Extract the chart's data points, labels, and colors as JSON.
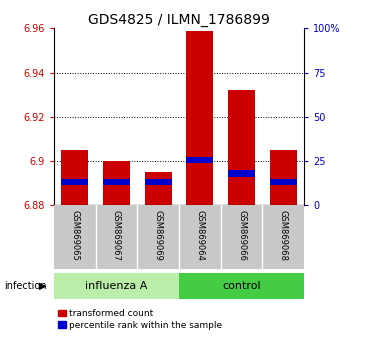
{
  "title": "GDS4825 / ILMN_1786899",
  "samples": [
    "GSM869065",
    "GSM869067",
    "GSM869069",
    "GSM869064",
    "GSM869066",
    "GSM869068"
  ],
  "group_labels": [
    "influenza A",
    "control"
  ],
  "bar_bottom": 6.88,
  "red_tops": [
    6.905,
    6.9,
    6.895,
    6.959,
    6.932,
    6.905
  ],
  "blue_bottoms": [
    6.889,
    6.889,
    6.889,
    6.899,
    6.893,
    6.889
  ],
  "blue_tops": [
    6.892,
    6.892,
    6.892,
    6.902,
    6.896,
    6.892
  ],
  "ylim": [
    6.88,
    6.96
  ],
  "yticks_left": [
    6.88,
    6.9,
    6.92,
    6.94,
    6.96
  ],
  "yticks_right": [
    0,
    25,
    50,
    75,
    100
  ],
  "red_color": "#CC0000",
  "blue_color": "#0000CC",
  "bar_width": 0.65,
  "influenza_bg": "#BBEEAA",
  "control_bg": "#44CC44",
  "label_area_bg": "#C8C8C8",
  "legend_red_label": "transformed count",
  "legend_blue_label": "percentile rank within the sample",
  "infection_label": "infection",
  "title_fontsize": 10,
  "tick_fontsize": 7,
  "sample_fontsize": 6,
  "group_fontsize": 8,
  "legend_fontsize": 6.5
}
